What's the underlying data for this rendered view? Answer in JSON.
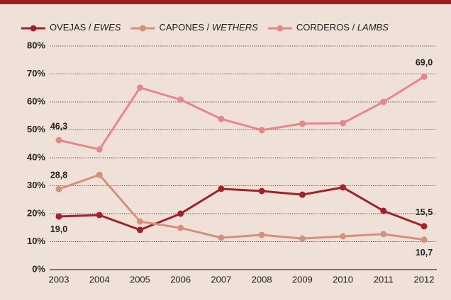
{
  "chart_data": {
    "type": "line",
    "x": [
      2003,
      2004,
      2005,
      2006,
      2007,
      2008,
      2009,
      2010,
      2011,
      2012
    ],
    "series": [
      {
        "name": "OVEJAS / EWES",
        "color": "#a3212a",
        "values": [
          19.0,
          19.5,
          14.2,
          20.0,
          28.9,
          28.1,
          26.8,
          29.4,
          21.0,
          15.5
        ],
        "value_labels": [
          "19,0",
          null,
          null,
          null,
          null,
          null,
          null,
          null,
          null,
          "15,5"
        ]
      },
      {
        "name": "CAPONES / WETHERS",
        "color": "#d4917a",
        "values": [
          28.8,
          33.9,
          17.2,
          14.9,
          11.4,
          12.4,
          11.1,
          11.9,
          12.7,
          10.7
        ],
        "value_labels": [
          "28,8",
          null,
          null,
          null,
          null,
          null,
          null,
          null,
          null,
          "10,7"
        ]
      },
      {
        "name": "CORDEROS / LAMBS",
        "color": "#e8868a",
        "values": [
          46.3,
          43.0,
          65.1,
          60.8,
          53.9,
          49.9,
          52.2,
          52.4,
          60.0,
          69.0
        ],
        "value_labels": [
          "46,3",
          null,
          null,
          null,
          null,
          null,
          null,
          null,
          null,
          "69,0"
        ]
      }
    ],
    "ylim": [
      0,
      80
    ],
    "yticks": [
      {
        "value": 0,
        "label": "0%"
      },
      {
        "value": 10,
        "label": "10%"
      },
      {
        "value": 20,
        "label": "20%"
      },
      {
        "value": 30,
        "label": "30%"
      },
      {
        "value": 40,
        "label": "40%"
      },
      {
        "value": 50,
        "label": "50%"
      },
      {
        "value": 60,
        "label": "60%"
      },
      {
        "value": 70,
        "label": "70%"
      },
      {
        "value": 80,
        "label": "80%"
      }
    ],
    "grid": true,
    "legend": "top"
  }
}
